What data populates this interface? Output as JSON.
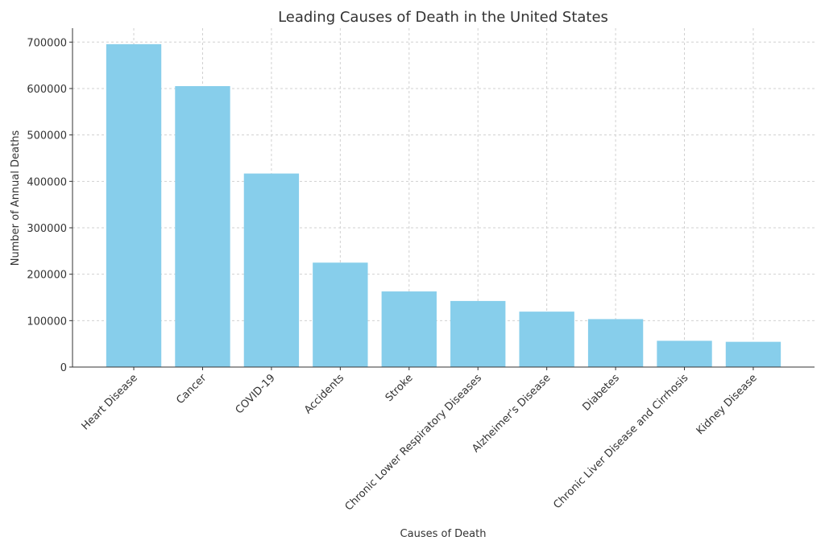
{
  "chart_data": {
    "type": "bar",
    "title": "Leading Causes of Death in the United States",
    "xlabel": "Causes of Death",
    "ylabel": "Number of Annual Deaths",
    "categories": [
      "Heart Disease",
      "Cancer",
      "COVID-19",
      "Accidents",
      "Stroke",
      "Chronic Lower Respiratory Diseases",
      "Alzheimer's Disease",
      "Diabetes",
      "Chronic Liver Disease and Cirrhosis",
      "Kidney Disease"
    ],
    "values": [
      695547,
      605213,
      416893,
      224935,
      162890,
      142342,
      119399,
      103294,
      56585,
      54358
    ],
    "ylim": [
      0,
      730000
    ],
    "yticks": [
      0,
      100000,
      200000,
      300000,
      400000,
      500000,
      600000,
      700000
    ],
    "ytick_labels": [
      "0",
      "100000",
      "200000",
      "300000",
      "400000",
      "500000",
      "600000",
      "700000"
    ],
    "grid": true,
    "bar_color": "#87CEEB"
  }
}
